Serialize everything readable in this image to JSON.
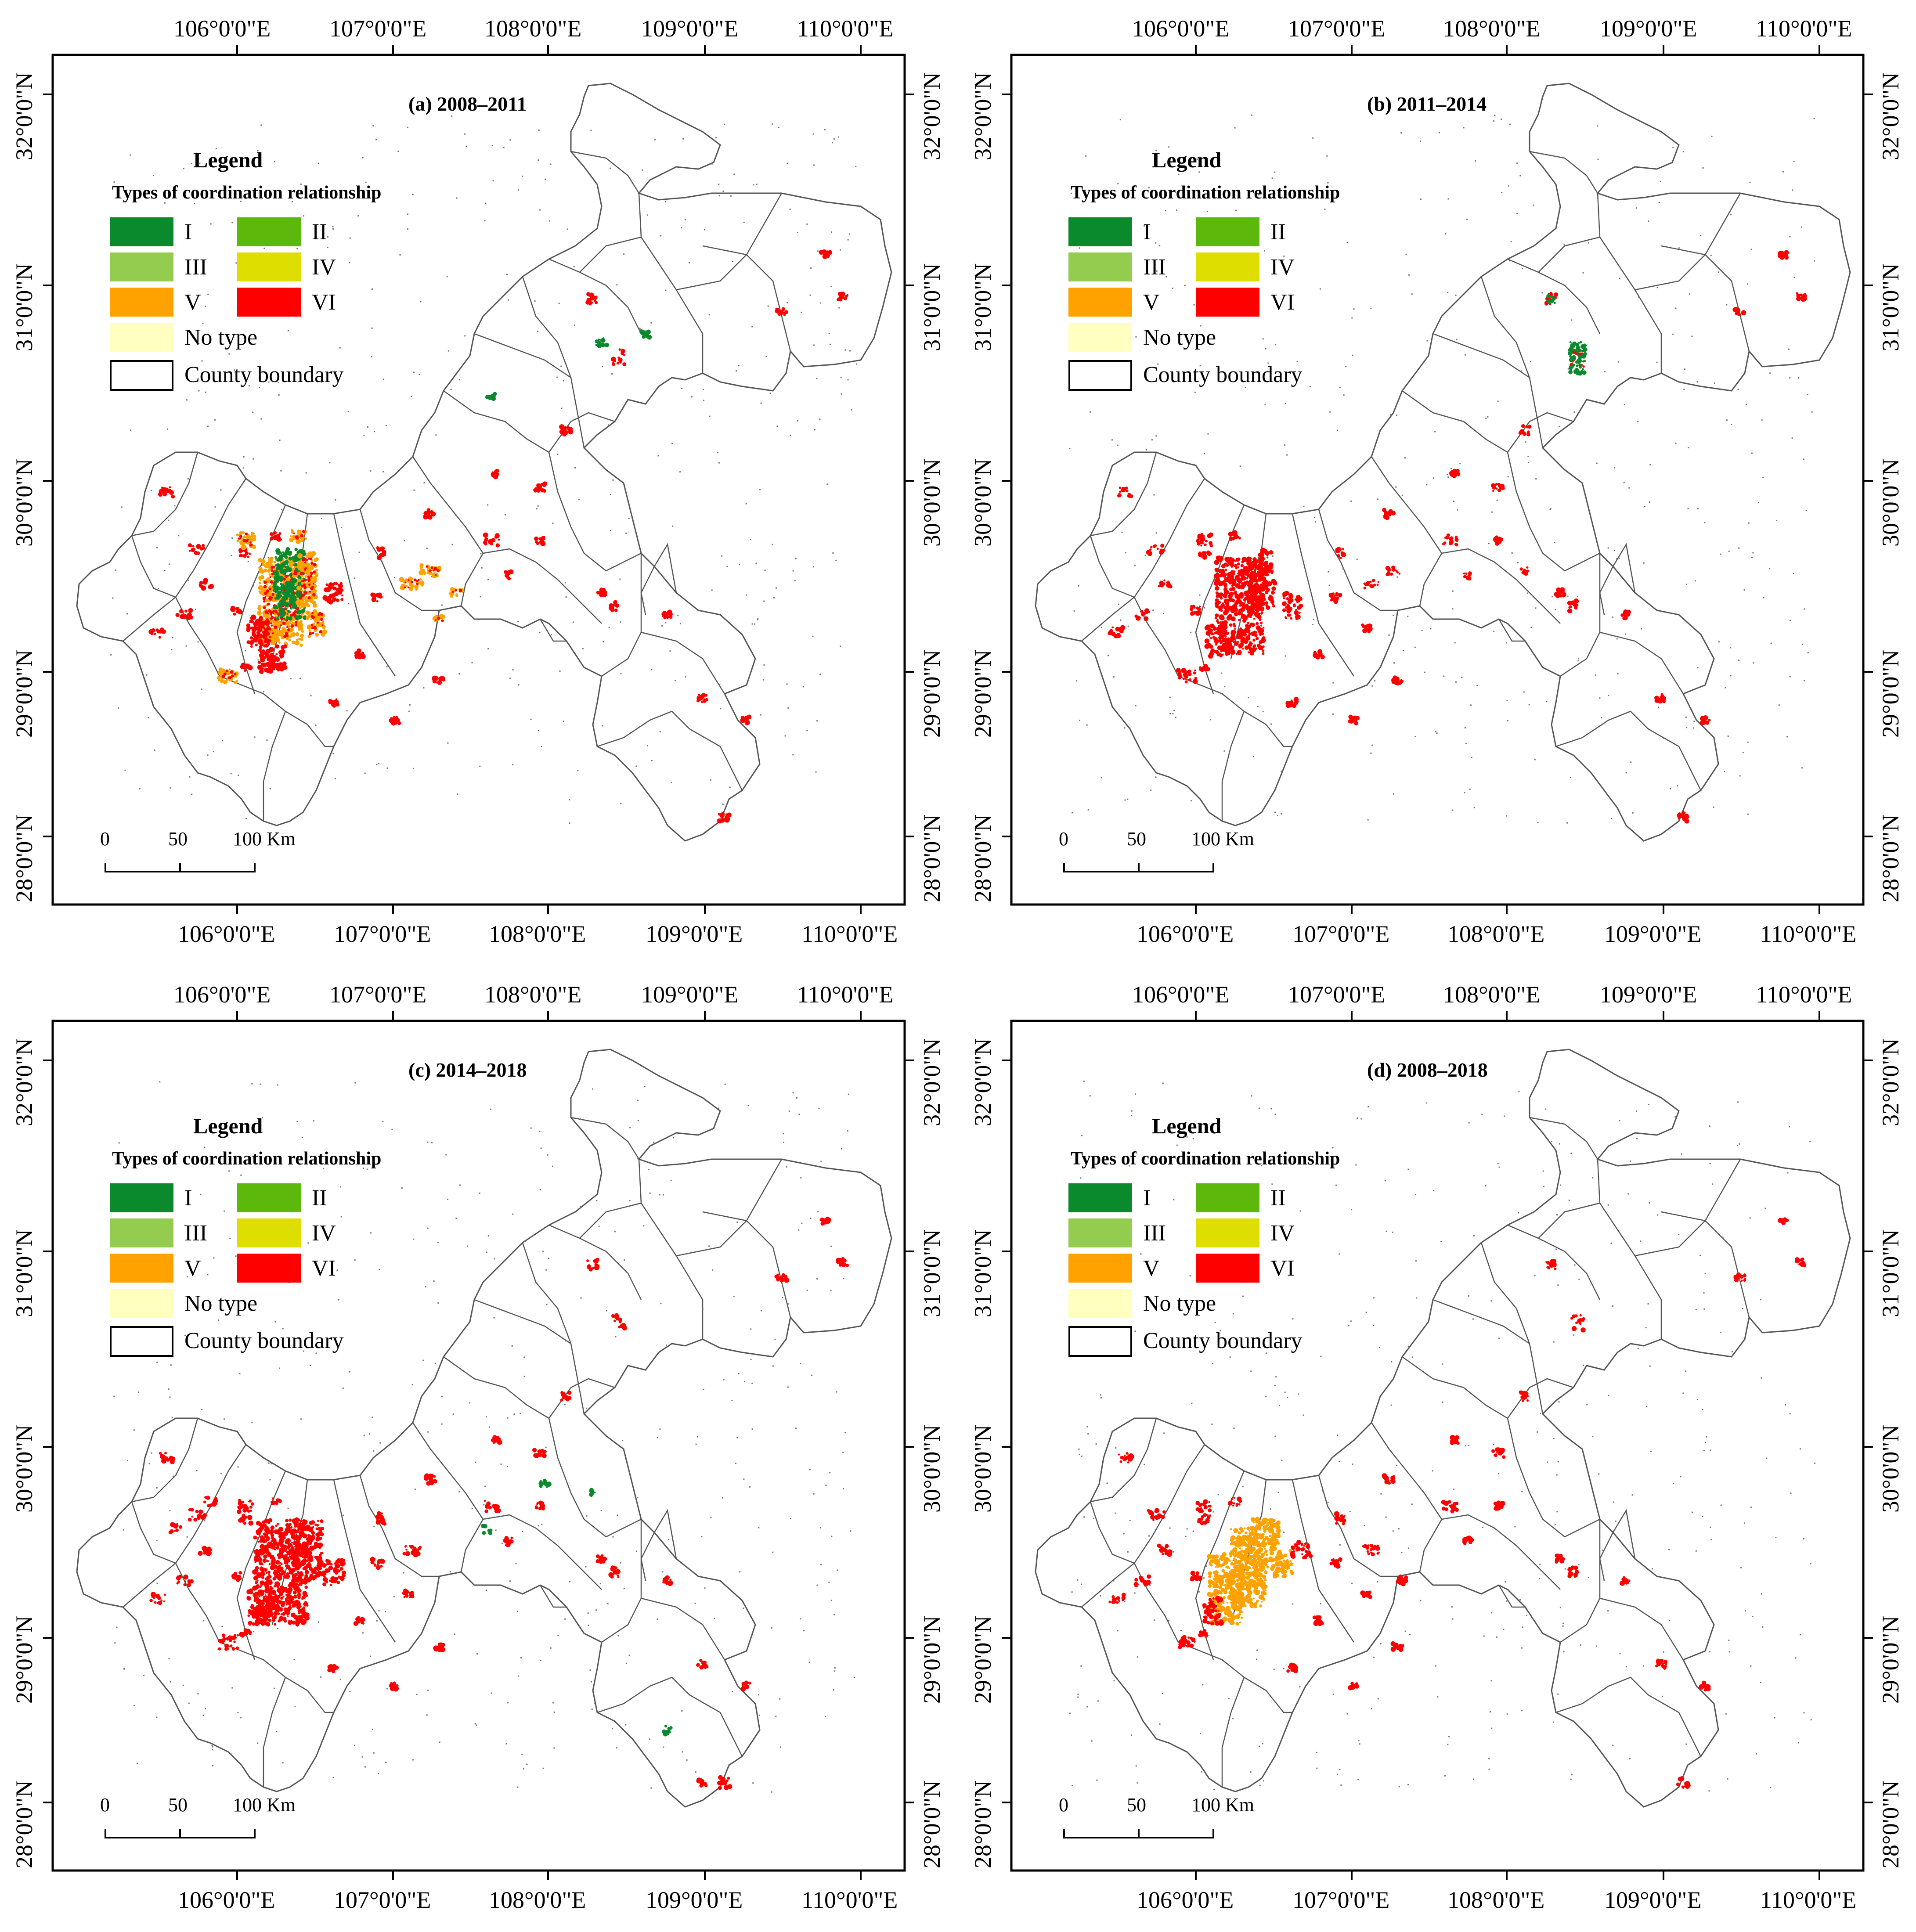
{
  "legend": {
    "title": "Legend",
    "subtitle": "Types of coordination relationship",
    "items": [
      {
        "label": "I",
        "color": "#0a8a2c"
      },
      {
        "label": "II",
        "color": "#5db80c"
      },
      {
        "label": "III",
        "color": "#93cc4e"
      },
      {
        "label": "IV",
        "color": "#dede00"
      },
      {
        "label": "V",
        "color": "#ffa200"
      },
      {
        "label": "VI",
        "color": "#ff0000"
      },
      {
        "label": "No type",
        "color": "#ffffc0"
      },
      {
        "label": "County boundary",
        "color": "#ffffff"
      }
    ]
  },
  "axes": {
    "lon_labels": [
      "106°0'0\"E",
      "107°0'0\"E",
      "108°0'0\"E",
      "109°0'0\"E",
      "110°0'0\"E"
    ],
    "lat_labels": [
      "28°0'0\"N",
      "29°0'0\"N",
      "30°0'0\"N",
      "31°0'0\"N",
      "32°0'0\"N"
    ]
  },
  "scale_bar": {
    "labels": [
      "0",
      "50",
      "100 Km"
    ]
  },
  "panels": [
    {
      "title": "(a) 2008–2011"
    },
    {
      "title": "(b) 2011–2014"
    },
    {
      "title": "(c) 2014–2018"
    },
    {
      "title": "(d) 2008–2018"
    }
  ],
  "colors": {
    "boundary": "#555555",
    "frame": "#000000"
  }
}
